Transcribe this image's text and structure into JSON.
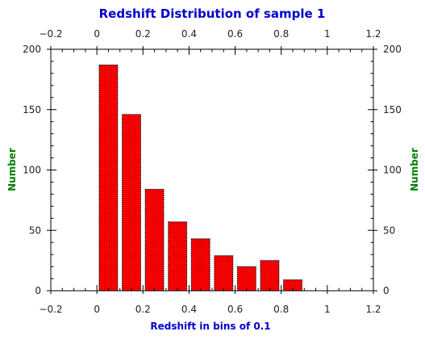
{
  "chart_data": {
    "type": "bar",
    "title": "Redshift Distribution of sample 1",
    "xlabel": "Redshift in bins of 0.1",
    "ylabel": "Number",
    "xlim": [
      -0.2,
      1.2
    ],
    "ylim": [
      0,
      200
    ],
    "x_ticks": [
      "−0.2",
      "0",
      "0.2",
      "0.4",
      "0.6",
      "0.8",
      "1",
      "1.2"
    ],
    "y_ticks": [
      "0",
      "50",
      "100",
      "150",
      "200"
    ],
    "bin_width": 0.1,
    "bins": [
      {
        "x": 0.05,
        "value": 187
      },
      {
        "x": 0.15,
        "value": 146
      },
      {
        "x": 0.25,
        "value": 84
      },
      {
        "x": 0.35,
        "value": 57
      },
      {
        "x": 0.45,
        "value": 43
      },
      {
        "x": 0.55,
        "value": 29
      },
      {
        "x": 0.65,
        "value": 20
      },
      {
        "x": 0.75,
        "value": 25
      },
      {
        "x": 0.85,
        "value": 9
      }
    ],
    "grid": false,
    "mirrored_axes": true,
    "colors": {
      "bar_fill": "#ff0000",
      "bar_edge": "#000000",
      "title": "#0000cc",
      "xlabel": "#0000cc",
      "ylabel": "#008000"
    }
  }
}
